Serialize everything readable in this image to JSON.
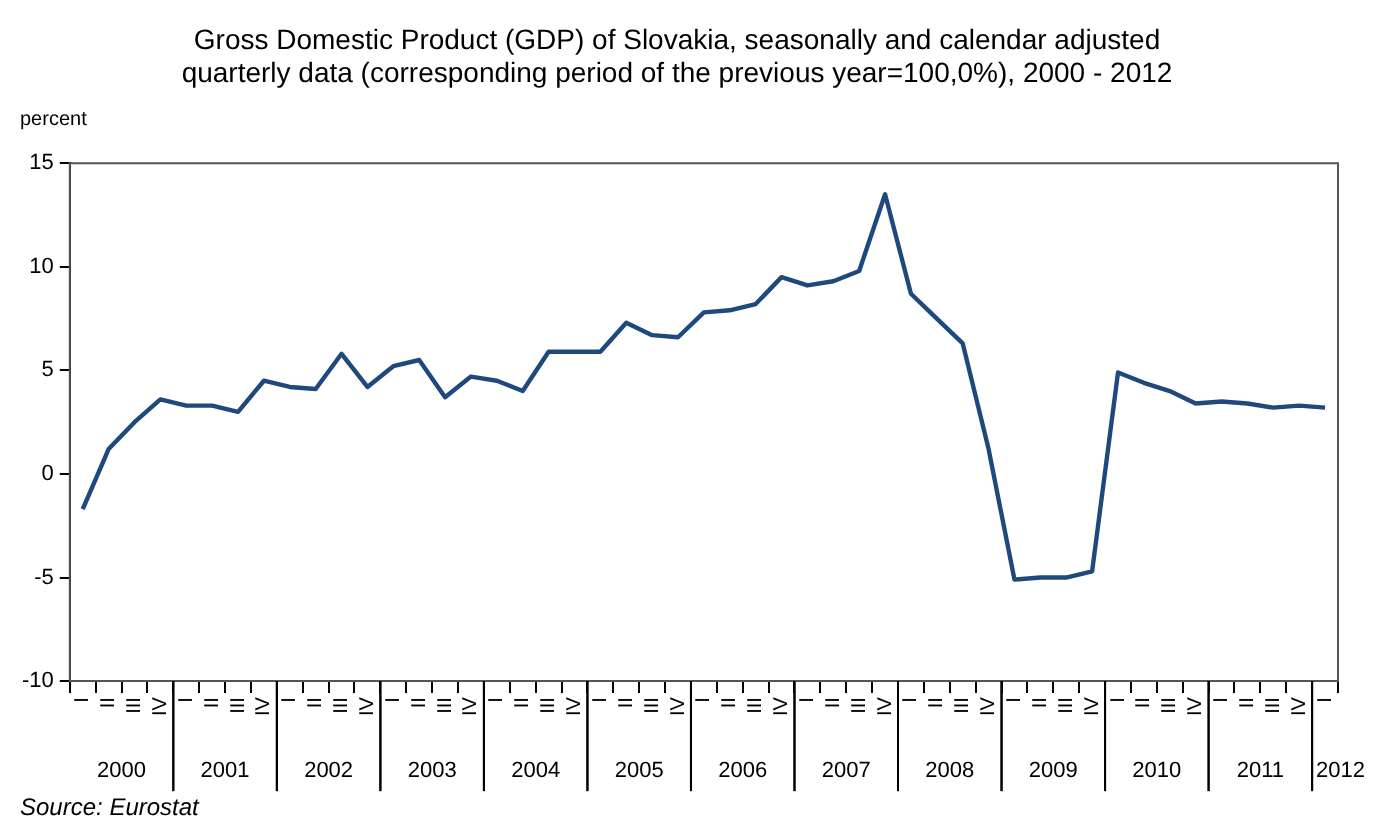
{
  "chart_data": {
    "type": "line",
    "title": "Gross Domestic Product (GDP) of Slovakia, seasonally and calendar adjusted\nquarterly data (corresponding period of the previous year=100,0%), 2000 - 2012",
    "ylabel": "percent",
    "categories": [
      "I",
      "II",
      "III",
      "IV",
      "I",
      "II",
      "III",
      "IV",
      "I",
      "II",
      "III",
      "IV",
      "I",
      "II",
      "III",
      "IV",
      "I",
      "II",
      "III",
      "IV",
      "I",
      "II",
      "III",
      "IV",
      "I",
      "II",
      "III",
      "IV",
      "I",
      "II",
      "III",
      "IV",
      "I",
      "II",
      "III",
      "IV",
      "I",
      "II",
      "III",
      "IV",
      "I",
      "II",
      "III",
      "IV",
      "I",
      "II",
      "III",
      "IV",
      "I"
    ],
    "series": [
      {
        "color": "#1f497d",
        "values": [
          -1.7,
          1.2,
          2.5,
          3.6,
          3.3,
          3.3,
          3.0,
          4.5,
          4.2,
          4.1,
          5.8,
          4.2,
          5.2,
          5.5,
          3.7,
          4.7,
          4.5,
          4.0,
          5.9,
          5.9,
          5.9,
          7.3,
          6.7,
          6.6,
          7.8,
          7.9,
          8.2,
          9.5,
          9.1,
          9.3,
          9.8,
          13.5,
          8.7,
          7.5,
          6.3,
          1.2,
          -5.1,
          -5.0,
          -5.0,
          -4.7,
          4.9,
          4.4,
          4.0,
          3.4,
          3.5,
          3.4,
          3.2,
          3.3,
          3.2
        ]
      }
    ],
    "ylim": [
      -10,
      15
    ],
    "yticks": [
      -10,
      -5,
      0,
      5,
      10,
      15
    ],
    "grid": false,
    "legend": false,
    "marker": "none",
    "line_style": "solid",
    "annotations": [
      "2000",
      "2001",
      "2002",
      "2003",
      "2004",
      "2005",
      "2006",
      "2007",
      "2008",
      "2009",
      "2010",
      "2011",
      "2012",
      "Source: Eurostat"
    ]
  }
}
